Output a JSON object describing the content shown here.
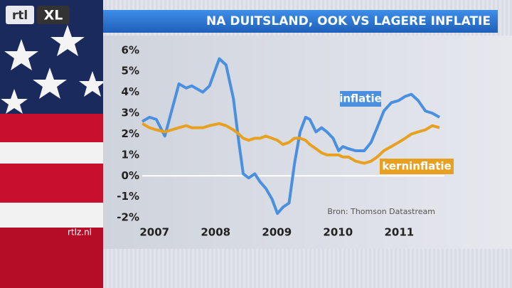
{
  "logo": {
    "brand": "rtl",
    "product": "XL"
  },
  "watermark": "rtlz.nl",
  "chart_data": {
    "type": "line",
    "title": "NA DUITSLAND, OOK VS LAGERE INFLATIE",
    "source": "Bron: Thomson Datastream",
    "x": [
      2007.3,
      2007.42,
      2007.53,
      2007.67,
      2007.9,
      2008.02,
      2008.11,
      2008.29,
      2008.4,
      2008.56,
      2008.67,
      2008.79,
      2008.88,
      2008.95,
      2009.04,
      2009.14,
      2009.23,
      2009.32,
      2009.42,
      2009.51,
      2009.6,
      2009.7,
      2009.79,
      2009.88,
      2009.97,
      2010.04,
      2010.14,
      2010.23,
      2010.32,
      2010.42,
      2010.51,
      2010.58,
      2010.67,
      2010.79,
      2010.93,
      2011.04,
      2011.14,
      2011.25,
      2011.37,
      2011.49,
      2011.6,
      2011.7,
      2011.81,
      2011.93,
      2012.04,
      2012.16
    ],
    "series": [
      {
        "name": "inflatie",
        "color": "#4a8fe0",
        "values": [
          2.6,
          2.8,
          2.7,
          1.9,
          4.4,
          4.2,
          4.3,
          4.0,
          4.3,
          5.6,
          5.3,
          3.7,
          1.6,
          0.1,
          -0.1,
          0.1,
          -0.3,
          -0.6,
          -1.1,
          -1.8,
          -1.5,
          -1.3,
          0.6,
          2.1,
          2.8,
          2.7,
          2.1,
          2.3,
          2.1,
          1.8,
          1.2,
          1.4,
          1.3,
          1.2,
          1.2,
          1.6,
          2.3,
          3.1,
          3.5,
          3.6,
          3.8,
          3.9,
          3.6,
          3.1,
          3.0,
          2.8
        ]
      },
      {
        "name": "kerninflatie",
        "color": "#e8a020",
        "values": [
          2.5,
          2.3,
          2.2,
          2.1,
          2.3,
          2.4,
          2.3,
          2.3,
          2.4,
          2.5,
          2.4,
          2.2,
          2.0,
          1.8,
          1.7,
          1.8,
          1.8,
          1.9,
          1.8,
          1.7,
          1.5,
          1.6,
          1.8,
          1.8,
          1.7,
          1.5,
          1.3,
          1.1,
          1.0,
          1.0,
          1.0,
          0.9,
          0.9,
          0.7,
          0.6,
          0.7,
          0.9,
          1.2,
          1.4,
          1.6,
          1.8,
          2.0,
          2.1,
          2.2,
          2.4,
          2.3
        ]
      }
    ],
    "xlim": [
      2007.3,
      2012.24
    ],
    "xticks": [
      {
        "value": 2007.5,
        "label": "2007"
      },
      {
        "value": 2008.5,
        "label": "2008"
      },
      {
        "value": 2009.5,
        "label": "2009"
      },
      {
        "value": 2010.5,
        "label": "2010"
      },
      {
        "value": 2011.5,
        "label": "2011"
      }
    ],
    "ylim": [
      -2.2,
      6.3
    ],
    "yticks": [
      {
        "value": -2,
        "label": "-2%"
      },
      {
        "value": -1,
        "label": "-1%"
      },
      {
        "value": 0,
        "label": "0%"
      },
      {
        "value": 1,
        "label": "1%"
      },
      {
        "value": 2,
        "label": "2%"
      },
      {
        "value": 3,
        "label": "3%"
      },
      {
        "value": 4,
        "label": "4%"
      },
      {
        "value": 5,
        "label": "5%"
      },
      {
        "value": 6,
        "label": "6%"
      }
    ],
    "zero_line": true
  }
}
